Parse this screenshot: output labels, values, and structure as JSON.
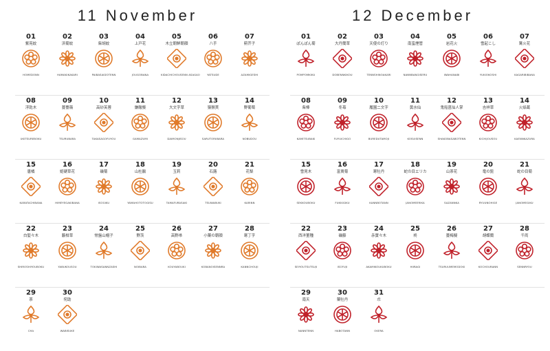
{
  "months": [
    {
      "title": "11  November",
      "color": "#e07a2a",
      "rows": [
        [
          {
            "num": "01",
            "jp": "紫苑紋",
            "rom": "HOMEDONN",
            "icon": "flower-crest"
          },
          {
            "num": "02",
            "jp": "浜菊紋",
            "rom": "HAMAKIKAKARI",
            "icon": "chrysanthemum-crest"
          },
          {
            "num": "03",
            "jp": "柴胡紋",
            "rom": "PAIBASAIDOTENN",
            "icon": "leaf-crest"
          },
          {
            "num": "04",
            "jp": "上戸花",
            "rom": "JOUGOBANA",
            "icon": "diamond-flower-crest"
          },
          {
            "num": "05",
            "jp": "木立朝鮮朝顔",
            "rom": "KIDACHICHOUSENN ASAGAO",
            "icon": "trumpet-flower-crest"
          },
          {
            "num": "06",
            "jp": "八手",
            "rom": "YATSUDE",
            "icon": "palm-leaf-crest"
          },
          {
            "num": "07",
            "jp": "薊芥子",
            "rom": "AZAMIGESHI",
            "icon": "thistle-crest"
          }
        ],
        [
          {
            "num": "08",
            "jp": "浮乾木",
            "rom": "UKITSUREBOKU",
            "icon": "swirl-crest"
          },
          {
            "num": "09",
            "jp": "蔓薔薇",
            "rom": "TSURUBARA",
            "icon": "rose-crest"
          },
          {
            "num": "10",
            "jp": "高砂芙蓉",
            "rom": "TAKASAGOFUYOU",
            "icon": "hibiscus-crest"
          },
          {
            "num": "11",
            "jp": "鎌酸漿",
            "rom": "GAMAZUMI",
            "icon": "berry-crest"
          },
          {
            "num": "12",
            "jp": "大文字草",
            "rom": "DAIMONJISOU",
            "icon": "daimonji-crest"
          },
          {
            "num": "13",
            "jp": "猿猴莢",
            "rom": "SARUTORIIBARA",
            "icon": "vine-crest"
          },
          {
            "num": "14",
            "jp": "野葡萄",
            "rom": "NOBUDOU",
            "icon": "grape-crest"
          }
        ],
        [
          {
            "num": "15",
            "jp": "唐橘",
            "rom": "KARATACHIBANA",
            "icon": "mandarin-crest"
          },
          {
            "num": "16",
            "jp": "姫硬草花",
            "rom": "HIMEYEGAKIBANA",
            "icon": "cluster-crest"
          },
          {
            "num": "17",
            "jp": "磯菊",
            "rom": "ISOGIKU",
            "icon": "beach-chrysanthemum-crest"
          },
          {
            "num": "18",
            "jp": "山杜鵑",
            "rom": "YAMAHOTOTOGISU",
            "icon": "lily-crest"
          },
          {
            "num": "19",
            "jp": "玉莉",
            "rom": "TAMAFURASAKI",
            "icon": "ring-flower-crest"
          },
          {
            "num": "20",
            "jp": "石蕗",
            "rom": "TSUWABUKI",
            "icon": "leaf-ring-crest"
          },
          {
            "num": "21",
            "jp": "花梨",
            "rom": "KARINN",
            "icon": "quince-crest"
          }
        ],
        [
          {
            "num": "22",
            "jp": "白髪々木",
            "rom": "SHIROSHIYOUBOKU",
            "icon": "spiky-crest"
          },
          {
            "num": "23",
            "jp": "藪柑草",
            "rom": "YABUKOUSOU",
            "icon": "grid-crest"
          },
          {
            "num": "24",
            "jp": "常盤山帽子",
            "rom": "TOKIWASANNZASHI",
            "icon": "round-fruit-crest"
          },
          {
            "num": "25",
            "jp": "野茨",
            "rom": "NOIBARA",
            "icon": "branch-crest"
          },
          {
            "num": "26",
            "jp": "高野帚",
            "rom": "KOUYABOUKI",
            "icon": "whirl-flower-crest"
          },
          {
            "num": "27",
            "jp": "小葉の朝顔",
            "rom": "KOBANOISENNRA",
            "icon": "bindweed-crest"
          },
          {
            "num": "28",
            "jp": "寒丁字",
            "rom": "KANNCHOUJI",
            "icon": "square-flower-crest"
          }
        ],
        [
          {
            "num": "29",
            "jp": "茶",
            "rom": "CHA",
            "icon": "tea-crest"
          },
          {
            "num": "30",
            "jp": "侘助",
            "rom": "WABISUKE",
            "icon": "camellia-crest"
          }
        ]
      ]
    },
    {
      "title": "12  December",
      "color": "#c0212a",
      "rows": [
        [
          {
            "num": "01",
            "jp": "ぽんぽん菊",
            "rom": "POMPOMKIKU",
            "icon": "pompom-crest"
          },
          {
            "num": "02",
            "jp": "大丹蘭草",
            "rom": "DOBENNKIKOU",
            "icon": "gourd-crest"
          },
          {
            "num": "03",
            "jp": "天使の灯り",
            "rom": "TENNSHINOAKARI",
            "icon": "lantern-crest"
          },
          {
            "num": "04",
            "jp": "南蛮煙管",
            "rom": "NANNBANGISERU",
            "icon": "pipe-crest"
          },
          {
            "num": "05",
            "jp": "岩花火",
            "rom": "IWAHANABI",
            "icon": "firework-crest"
          },
          {
            "num": "06",
            "jp": "雪起こし",
            "rom": "YUKIOKOSHI",
            "icon": "snow-lift-crest"
          },
          {
            "num": "07",
            "jp": "篝火花",
            "rom": "KAGARIBIBANA",
            "icon": "bonfire-crest"
          }
        ],
        [
          {
            "num": "08",
            "jp": "柴棒",
            "rom": "KAMITSUBAKI",
            "icon": "snow-ring-crest"
          },
          {
            "num": "09",
            "jp": "冬苺",
            "rom": "FUYUICHIGO",
            "icon": "strawberry-crest"
          },
          {
            "num": "10",
            "jp": "履園二文字",
            "rom": "BUREDUTAMOJI",
            "icon": "double-ring-crest"
          },
          {
            "num": "11",
            "jp": "黄水仙",
            "rom": "KOSUISENN",
            "icon": "narcissus-crest"
          },
          {
            "num": "12",
            "jp": "鬼船菖仙人掌",
            "rom": "SHAKOBASABOTENN",
            "icon": "cactus-crest"
          },
          {
            "num": "13",
            "jp": "吉祥草",
            "rom": "KICHIJOUSOU",
            "icon": "crescent-crest"
          },
          {
            "num": "14",
            "jp": "火焔葛",
            "rom": "KAENNKAZURA",
            "icon": "flame-vine-crest"
          }
        ],
        [
          {
            "num": "15",
            "jp": "雪見木",
            "rom": "SEKKOUBOKU",
            "icon": "diamond-snow-crest"
          },
          {
            "num": "16",
            "jp": "富貴菊",
            "rom": "FUKKIGIKU",
            "icon": "wealth-chrysanthemum-crest"
          },
          {
            "num": "17",
            "jp": "寒牡丹",
            "rom": "KANNBOTANN",
            "icon": "peony-crest"
          },
          {
            "num": "18",
            "jp": "蛇の目エリカ",
            "rom": "JANOMEERIKA",
            "icon": "heath-crest"
          },
          {
            "num": "19",
            "jp": "山茶花",
            "rom": "SAZANNKA",
            "icon": "sasanqua-crest"
          },
          {
            "num": "20",
            "jp": "竜の髭",
            "rom": "RYUUNOHIGE",
            "icon": "dragon-beard-crest"
          },
          {
            "num": "21",
            "jp": "蛇の目菊",
            "rom": "JANOMEGIKU",
            "icon": "eye-chrysanthemum-crest"
          }
        ],
        [
          {
            "num": "22",
            "jp": "西洋菫種",
            "rom": "SEIYOUTSUTSUJI",
            "icon": "azalea-crest"
          },
          {
            "num": "23",
            "jp": "磯藤",
            "rom": "ISOFUJI",
            "icon": "wisteria-crest"
          },
          {
            "num": "24",
            "jp": "赤實々木",
            "rom": "AKAMIKOUKUBOKU",
            "icon": "red-berry-crest"
          },
          {
            "num": "25",
            "jp": "柊",
            "rom": "HIIRAGI",
            "icon": "holly-crest"
          },
          {
            "num": "26",
            "jp": "蔓梅擬",
            "rom": "TSURUUMEMODOKI",
            "icon": "bittersweet-crest"
          },
          {
            "num": "27",
            "jp": "胡蝶蘭",
            "rom": "KOCHOURANN",
            "icon": "orchid-crest"
          },
          {
            "num": "28",
            "jp": "千両",
            "rom": "SENNRYOU",
            "icon": "senryo-crest"
          }
        ],
        [
          {
            "num": "29",
            "jp": "南天",
            "rom": "NANNTENN",
            "icon": "nandina-crest"
          },
          {
            "num": "30",
            "jp": "葉牡丹",
            "rom": "HABOTANN",
            "icon": "kale-crest"
          },
          {
            "num": "31",
            "jp": "朮",
            "rom": "OKERA",
            "icon": "okera-crest"
          }
        ]
      ]
    }
  ]
}
